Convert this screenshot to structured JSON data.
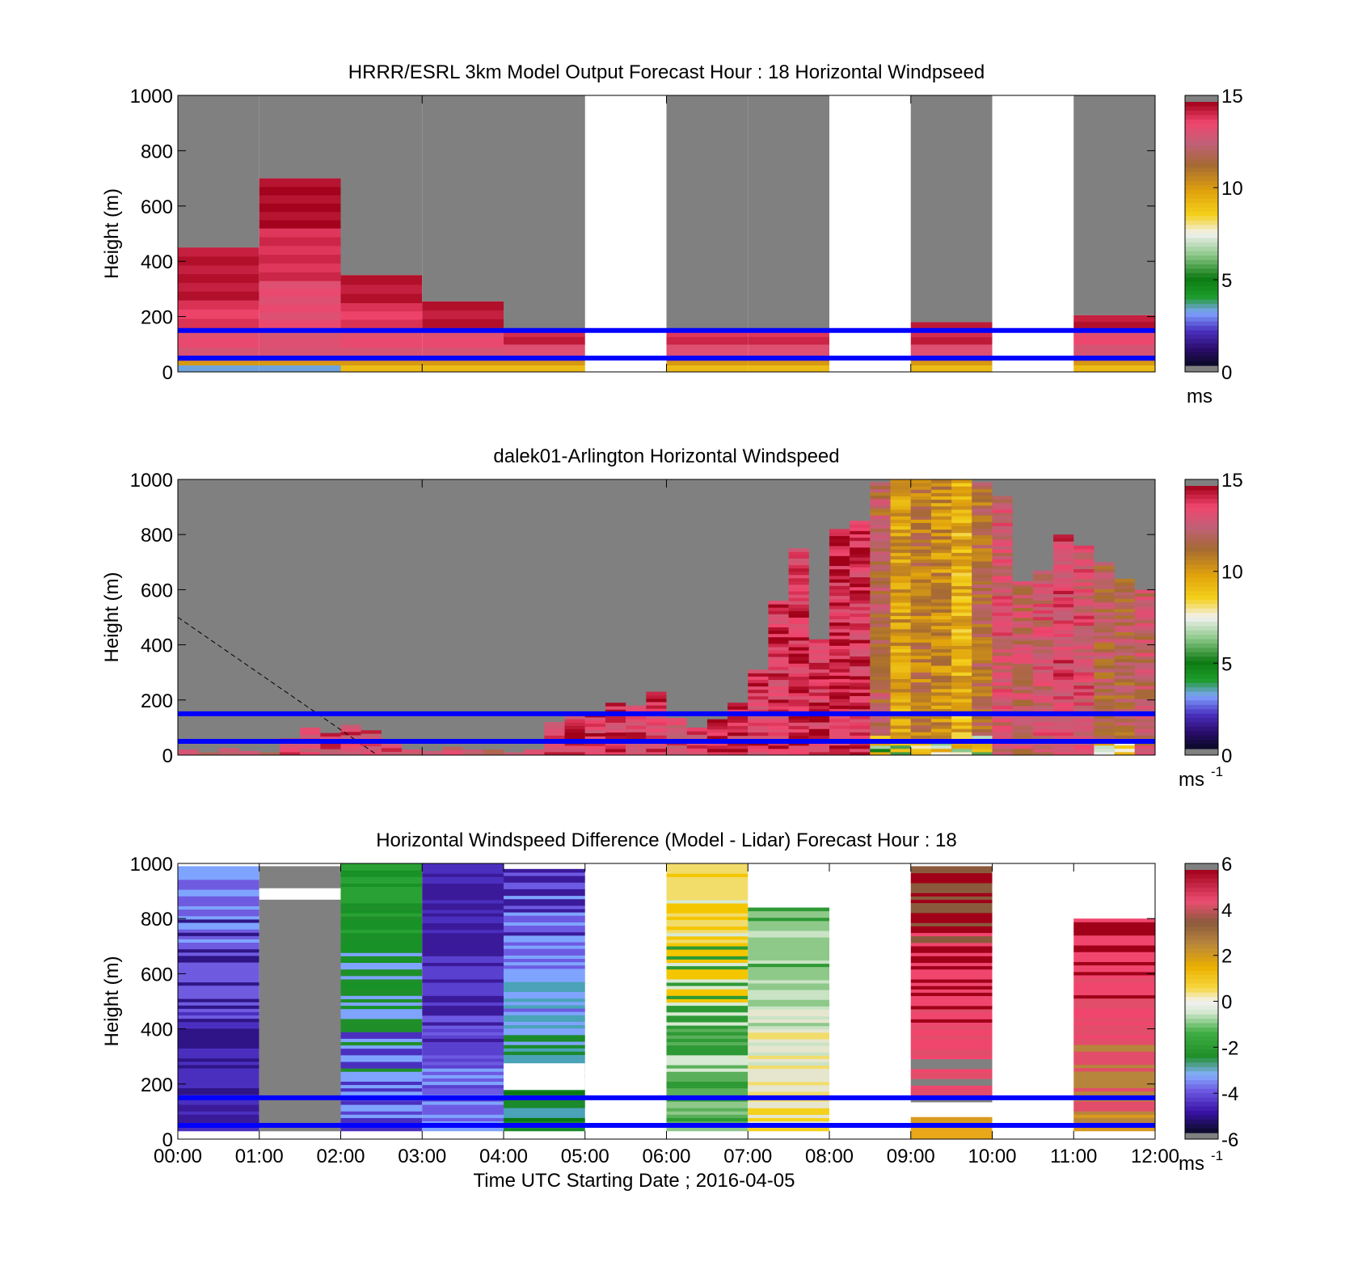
{
  "chart_data": [
    {
      "type": "heatmap",
      "title": "HRRR/ESRL 3km Model Output   Forecast Hour : 18 Horizontal Windpseed",
      "xlabel": "",
      "ylabel": "Height (m)",
      "xlim": [
        0,
        12
      ],
      "ylim": [
        0,
        1000
      ],
      "yticks": [
        0,
        200,
        400,
        600,
        800,
        1000
      ],
      "xticks": [
        0,
        3,
        6,
        9,
        12
      ],
      "xtick_labels_shown": false,
      "colorbar": {
        "colormap": "windspeed",
        "clim": [
          0,
          15
        ],
        "ticks": [
          "0",
          "5",
          "10",
          "15"
        ],
        "unit": "ms",
        "unit_sup": ""
      },
      "reference_lines": [
        50,
        150
      ],
      "reference_line_color": "#0000ff",
      "missing_color": "#808080",
      "hourly_columns": [
        {
          "hour": 0,
          "top": 450,
          "profile": [
            [
              0,
              25,
              3
            ],
            [
              25,
              40,
              10
            ],
            [
              40,
              60,
              12
            ],
            [
              60,
              90,
              13
            ],
            [
              90,
              160,
              13.5
            ],
            [
              160,
              260,
              14
            ],
            [
              260,
              450,
              14.6
            ]
          ]
        },
        {
          "hour": 1,
          "top": 700,
          "profile": [
            [
              0,
              25,
              3
            ],
            [
              25,
              40,
              10
            ],
            [
              40,
              60,
              12
            ],
            [
              60,
              90,
              13
            ],
            [
              90,
              160,
              13.2
            ],
            [
              160,
              330,
              13.5
            ],
            [
              330,
              520,
              14.2
            ],
            [
              520,
              700,
              14.8
            ]
          ]
        },
        {
          "hour": 2,
          "top": 350,
          "profile": [
            [
              0,
              25,
              9
            ],
            [
              25,
              40,
              10
            ],
            [
              40,
              60,
              12
            ],
            [
              60,
              90,
              13
            ],
            [
              90,
              160,
              13.5
            ],
            [
              160,
              250,
              14
            ],
            [
              250,
              350,
              14.6
            ]
          ]
        },
        {
          "hour": 3,
          "top": 255,
          "profile": [
            [
              0,
              25,
              9
            ],
            [
              25,
              40,
              10
            ],
            [
              40,
              60,
              12
            ],
            [
              60,
              90,
              13
            ],
            [
              90,
              160,
              13.5
            ],
            [
              160,
              255,
              14.6
            ]
          ]
        },
        {
          "hour": 4,
          "top": 155,
          "profile": [
            [
              0,
              25,
              9
            ],
            [
              25,
              40,
              10
            ],
            [
              40,
              60,
              12
            ],
            [
              60,
              100,
              13.2
            ],
            [
              100,
              155,
              14.4
            ]
          ]
        },
        {
          "hour": 5,
          "top": 0,
          "profile": []
        },
        {
          "hour": 6,
          "top": 155,
          "profile": [
            [
              0,
              25,
              9
            ],
            [
              25,
              40,
              10
            ],
            [
              40,
              60,
              12
            ],
            [
              60,
              100,
              13.2
            ],
            [
              100,
              155,
              14.2
            ]
          ]
        },
        {
          "hour": 7,
          "top": 155,
          "profile": [
            [
              0,
              25,
              9
            ],
            [
              25,
              40,
              10
            ],
            [
              40,
              60,
              12
            ],
            [
              60,
              100,
              13.2
            ],
            [
              100,
              155,
              14.2
            ]
          ]
        },
        {
          "hour": 8,
          "top": 0,
          "profile": []
        },
        {
          "hour": 9,
          "top": 180,
          "profile": [
            [
              0,
              25,
              9
            ],
            [
              25,
              40,
              10
            ],
            [
              40,
              60,
              12
            ],
            [
              60,
              100,
              13.2
            ],
            [
              100,
              180,
              14.4
            ]
          ]
        },
        {
          "hour": 10,
          "top": 0,
          "profile": []
        },
        {
          "hour": 11,
          "top": 205,
          "profile": [
            [
              0,
              25,
              9
            ],
            [
              25,
              40,
              10
            ],
            [
              40,
              60,
              12
            ],
            [
              60,
              100,
              13
            ],
            [
              100,
              160,
              13.6
            ],
            [
              160,
              205,
              14.6
            ]
          ]
        }
      ]
    },
    {
      "type": "heatmap",
      "title": "dalek01-Arlington  Horizontal Windspeed",
      "xlabel": "",
      "ylabel": "Height (m)",
      "xlim": [
        0,
        12
      ],
      "ylim": [
        0,
        1000
      ],
      "yticks": [
        0,
        200,
        400,
        600,
        800,
        1000
      ],
      "xticks": [
        0,
        3,
        6,
        9,
        12
      ],
      "xtick_labels_shown": false,
      "colorbar": {
        "colormap": "windspeed",
        "clim": [
          0,
          15
        ],
        "ticks": [
          "0",
          "5",
          "10",
          "15"
        ],
        "unit": "ms",
        "unit_sup": "-1"
      },
      "reference_lines": [
        50,
        150
      ],
      "reference_line_color": "#0000ff",
      "missing_color": "#808080",
      "dashed_line": [
        [
          0,
          500
        ],
        [
          2.45,
          0
        ]
      ],
      "time_step_hours": 0.25,
      "column_tops_m": [
        20,
        10,
        25,
        15,
        10,
        60,
        100,
        80,
        110,
        90,
        40,
        20,
        15,
        30,
        20,
        20,
        10,
        20,
        120,
        155,
        150,
        190,
        180,
        230,
        135,
        100,
        130,
        190,
        310,
        560,
        750,
        420,
        820,
        850,
        990,
        1000,
        1000,
        1000,
        1000,
        990,
        940,
        630,
        670,
        800,
        760,
        700,
        640,
        600
      ],
      "column_mean_speed": [
        13,
        13,
        13,
        13,
        13,
        13.5,
        13.5,
        13.5,
        13.5,
        13.5,
        13.5,
        13,
        13,
        13,
        13,
        13,
        13,
        13,
        13.5,
        14,
        14,
        14,
        14,
        14,
        13.5,
        13.5,
        14,
        14,
        14,
        14,
        14.2,
        14.2,
        14.4,
        14.2,
        12,
        10,
        11,
        10.5,
        9.5,
        11.5,
        13,
        12.5,
        13,
        13.5,
        13.2,
        12,
        12,
        12.5
      ]
    },
    {
      "type": "heatmap",
      "title": "Horizontal Windspeed Difference (Model - Lidar) Forecast Hour : 18",
      "xlabel": "Time UTC  Starting Date ; 2016-04-05",
      "ylabel": "Height (m)",
      "xlim": [
        0,
        12
      ],
      "ylim": [
        0,
        1000
      ],
      "yticks": [
        0,
        200,
        400,
        600,
        800,
        1000
      ],
      "xticks": [
        0,
        1,
        2,
        3,
        4,
        5,
        6,
        7,
        8,
        9,
        10,
        11,
        12
      ],
      "xtick_labels": [
        "00:00",
        "01:00",
        "02:00",
        "03:00",
        "04:00",
        "05:00",
        "06:00",
        "07:00",
        "08:00",
        "09:00",
        "10:00",
        "11:00",
        "12:00"
      ],
      "xtick_labels_shown": true,
      "colorbar": {
        "colormap": "difference",
        "clim": [
          -6,
          6
        ],
        "ticks": [
          "-6",
          "-4",
          "-2",
          "0",
          "2",
          "4",
          "6"
        ],
        "unit": "ms",
        "unit_sup": "-1"
      },
      "reference_lines": [
        50,
        150
      ],
      "reference_line_color": "#0000ff",
      "missing_color": "#808080",
      "hourly_columns": [
        {
          "hour": 0,
          "segments": [
            [
              30,
              990,
              "purple"
            ]
          ]
        },
        {
          "hour": 1,
          "segments": [
            [
              30,
              990,
              "gray"
            ],
            [
              870,
              910,
              "white"
            ]
          ]
        },
        {
          "hour": 2,
          "segments": [
            [
              30,
              1000,
              "mixed-purple-green"
            ]
          ]
        },
        {
          "hour": 3,
          "segments": [
            [
              30,
              1000,
              "mixed-lightblue-purple"
            ]
          ]
        },
        {
          "hour": 4,
          "segments": [
            [
              30,
              980,
              "mixed-green-blue"
            ],
            [
              180,
              275,
              "white"
            ]
          ]
        },
        {
          "hour": 5,
          "segments": []
        },
        {
          "hour": 6,
          "segments": [
            [
              30,
              1000,
              "mixed-green-yellow"
            ]
          ]
        },
        {
          "hour": 7,
          "segments": [
            [
              30,
              840,
              "mixed-yellow-lightgreen"
            ]
          ]
        },
        {
          "hour": 8,
          "segments": []
        },
        {
          "hour": 9,
          "segments": [
            [
              0,
              80,
              "orange"
            ],
            [
              135,
              990,
              "mixed-brown-pink-gray"
            ]
          ]
        },
        {
          "hour": 10,
          "segments": []
        },
        {
          "hour": 11,
          "segments": [
            [
              30,
              800,
              "mixed-orange-pink"
            ]
          ]
        }
      ]
    }
  ]
}
